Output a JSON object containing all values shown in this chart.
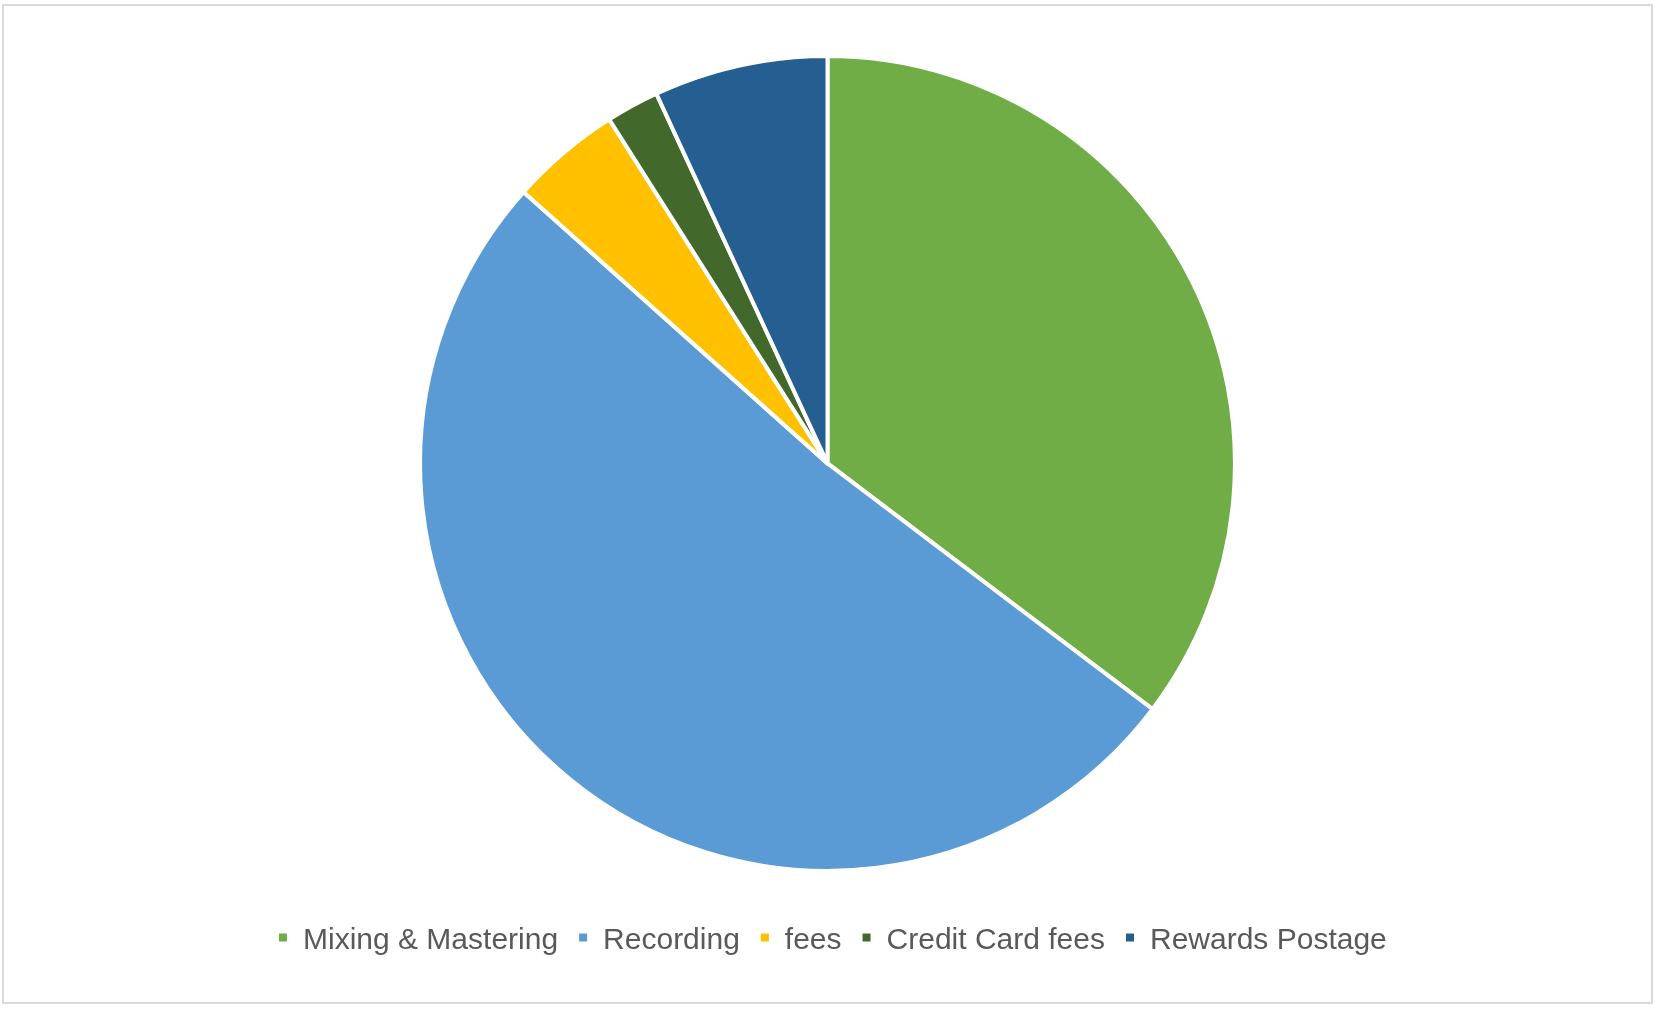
{
  "chart_data": {
    "type": "pie",
    "categories": [
      "Mixing & Mastering",
      "Recording",
      "fees",
      "Credit Card fees",
      "Rewards Postage"
    ],
    "values": [
      35.3,
      51.3,
      4.4,
      2.1,
      6.9
    ],
    "colors": [
      "#70ad47",
      "#5b9bd5",
      "#ffc000",
      "#43682b",
      "#255e91"
    ],
    "legend": "bottom"
  }
}
